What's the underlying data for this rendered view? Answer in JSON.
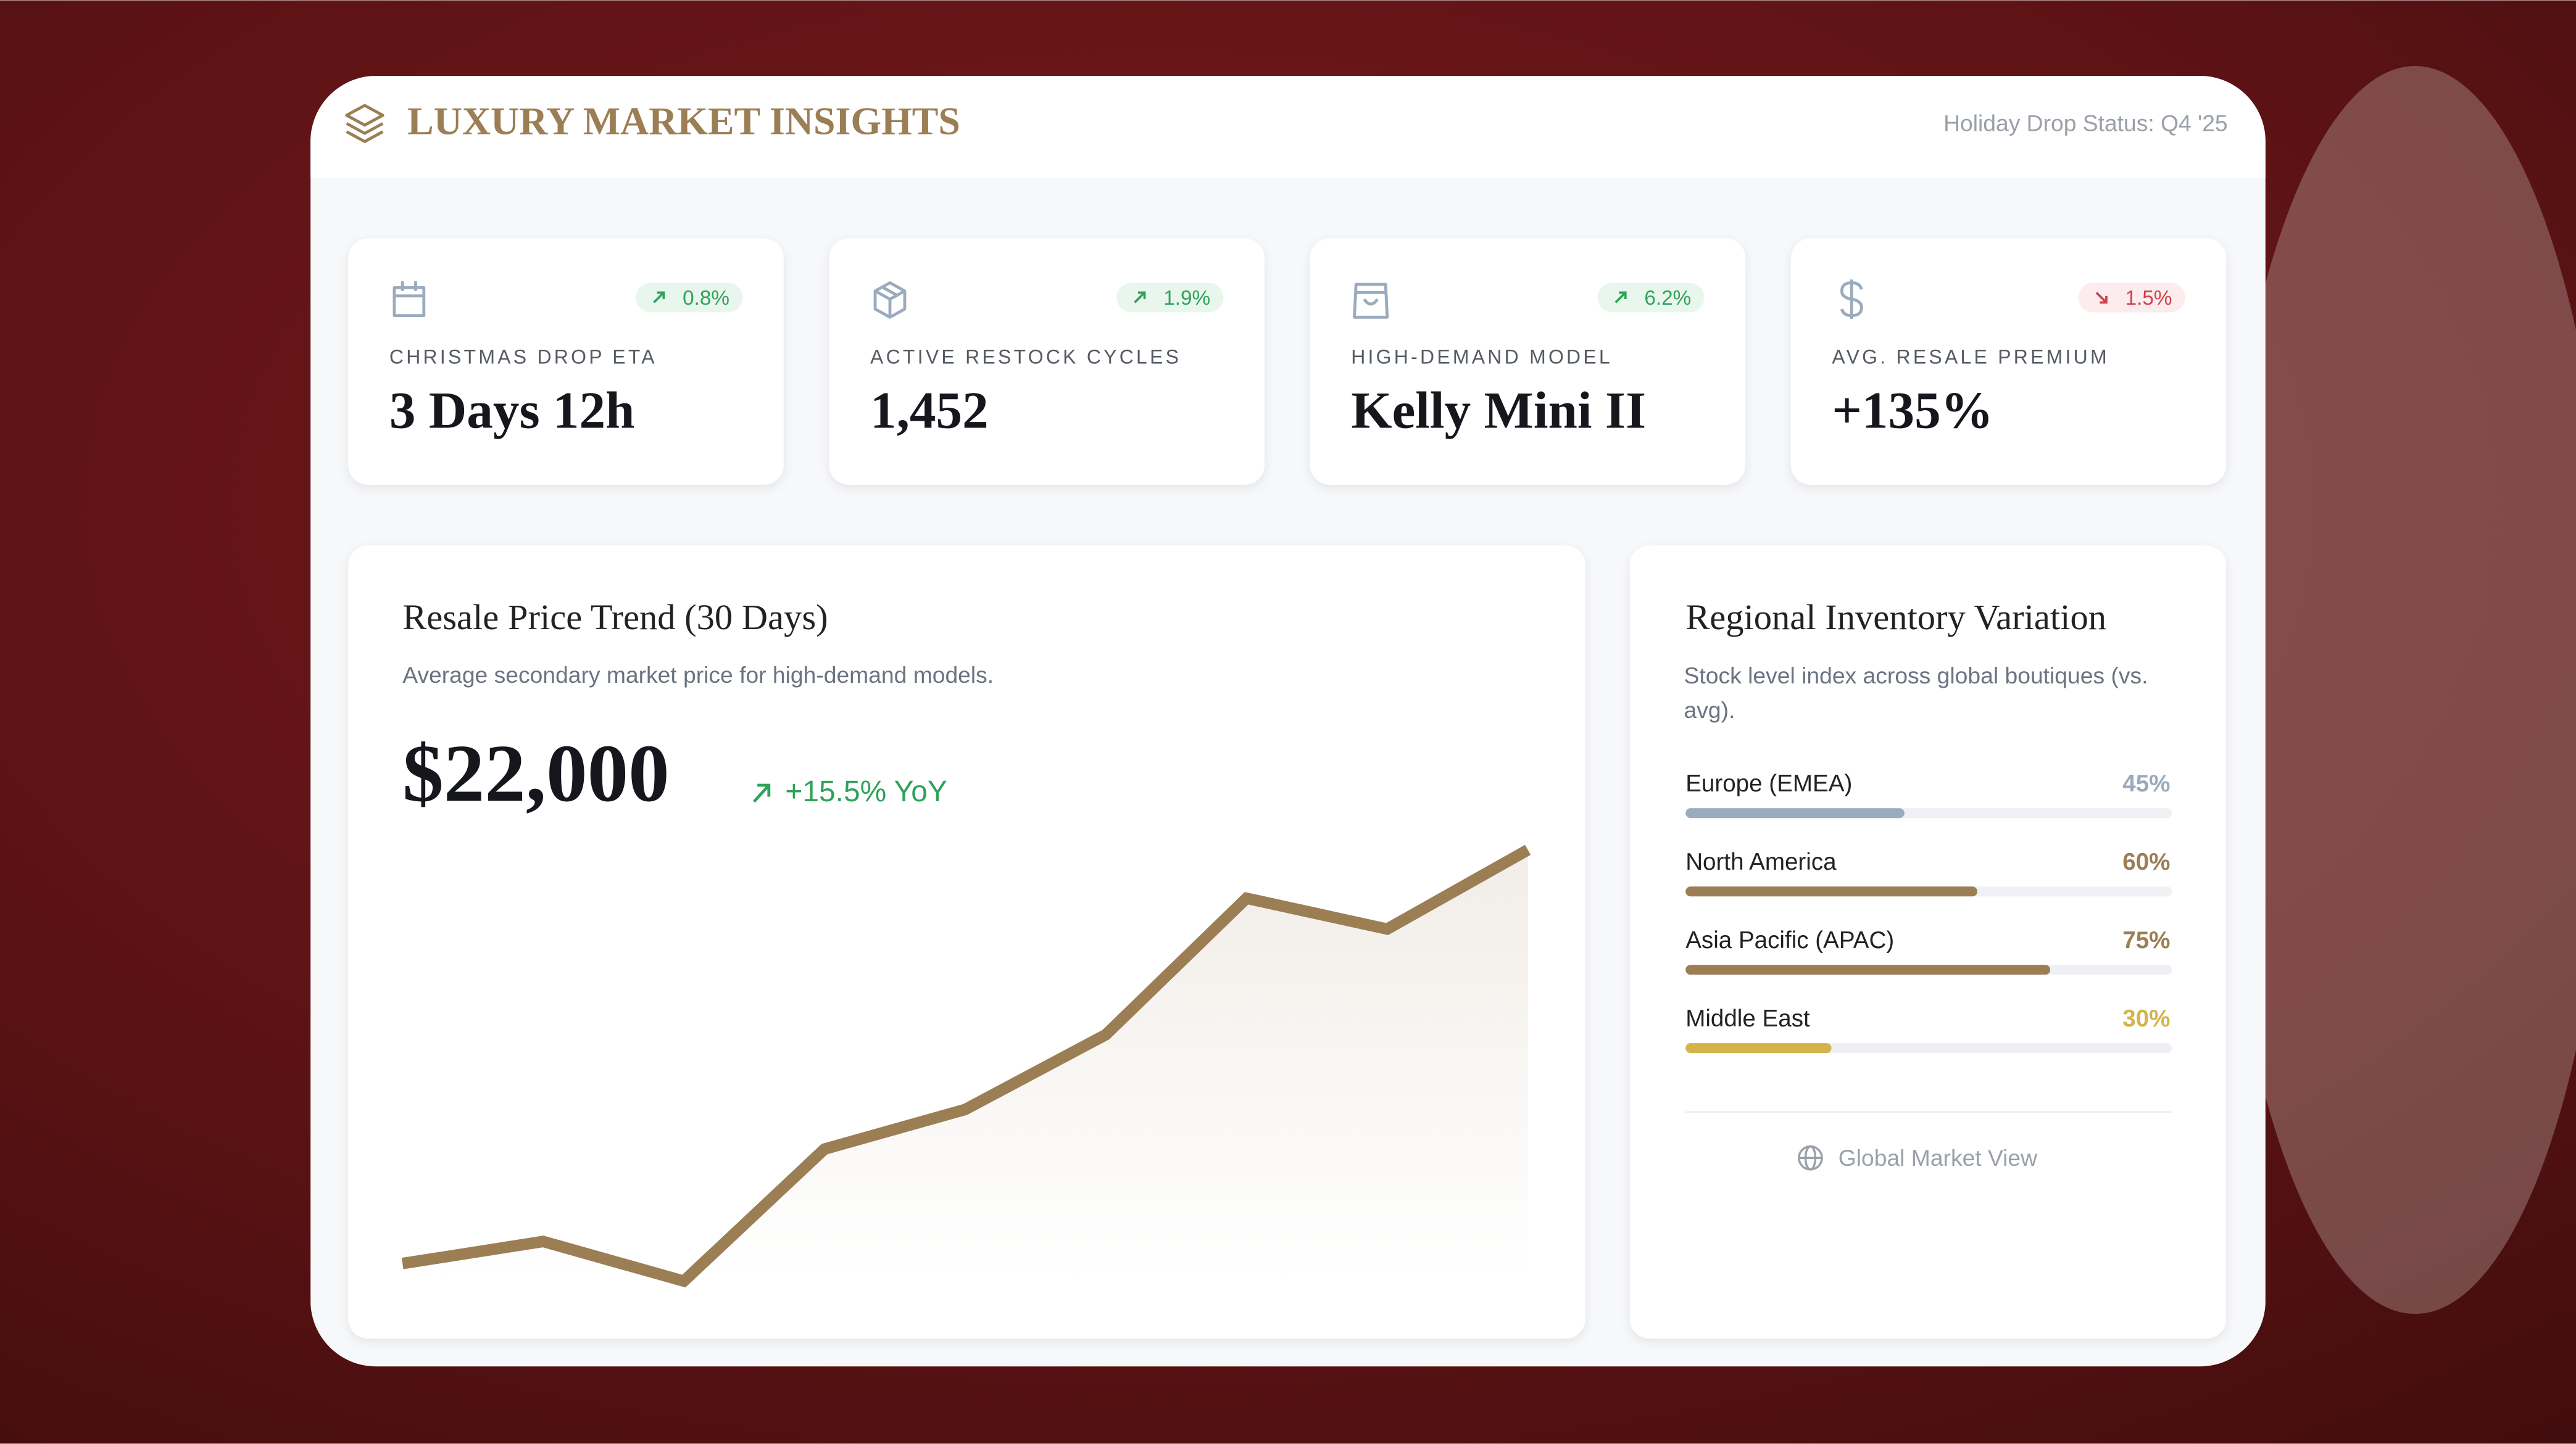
{
  "header": {
    "title": "LUXURY MARKET INSIGHTS",
    "status": "Holiday Drop Status: Q4 '25"
  },
  "kpis": [
    {
      "label": "CHRISTMAS DROP ETA",
      "value": "3 Days 12h",
      "change": "0.8%",
      "trend": "up",
      "icon": "calendar"
    },
    {
      "label": "ACTIVE RESTOCK CYCLES",
      "value": "1,452",
      "change": "1.9%",
      "trend": "up",
      "icon": "box"
    },
    {
      "label": "HIGH-DEMAND MODEL",
      "value": "Kelly Mini II",
      "change": "6.2%",
      "trend": "up",
      "icon": "bag"
    },
    {
      "label": "AVG. RESALE PREMIUM",
      "value": "+135%",
      "change": "1.5%",
      "trend": "down",
      "icon": "dollar"
    }
  ],
  "trend": {
    "title": "Resale Price Trend (30 Days)",
    "subtitle": "Average secondary market price for high-demand models.",
    "value": "$22,000",
    "change": "+15.5% YoY",
    "chart": {
      "type": "line",
      "values": [
        4,
        9,
        0,
        30,
        39,
        56,
        87,
        80,
        98
      ],
      "ylim": [
        0,
        100
      ],
      "color": "#9c7e55"
    }
  },
  "regions": {
    "title": "Regional Inventory Variation",
    "subtitle": "Stock level index across global boutiques (vs. avg).",
    "items": [
      {
        "name": "Europe (EMEA)",
        "value": 45,
        "value_label": "45%",
        "color": "#9aabbd"
      },
      {
        "name": "North America",
        "value": 60,
        "value_label": "60%",
        "color": "#9c7e55"
      },
      {
        "name": "Asia Pacific (APAC)",
        "value": 75,
        "value_label": "75%",
        "color": "#9c7e55"
      },
      {
        "name": "Middle East",
        "value": 30,
        "value_label": "30%",
        "color": "#d4b44a"
      }
    ],
    "footer": "Global Market View"
  }
}
